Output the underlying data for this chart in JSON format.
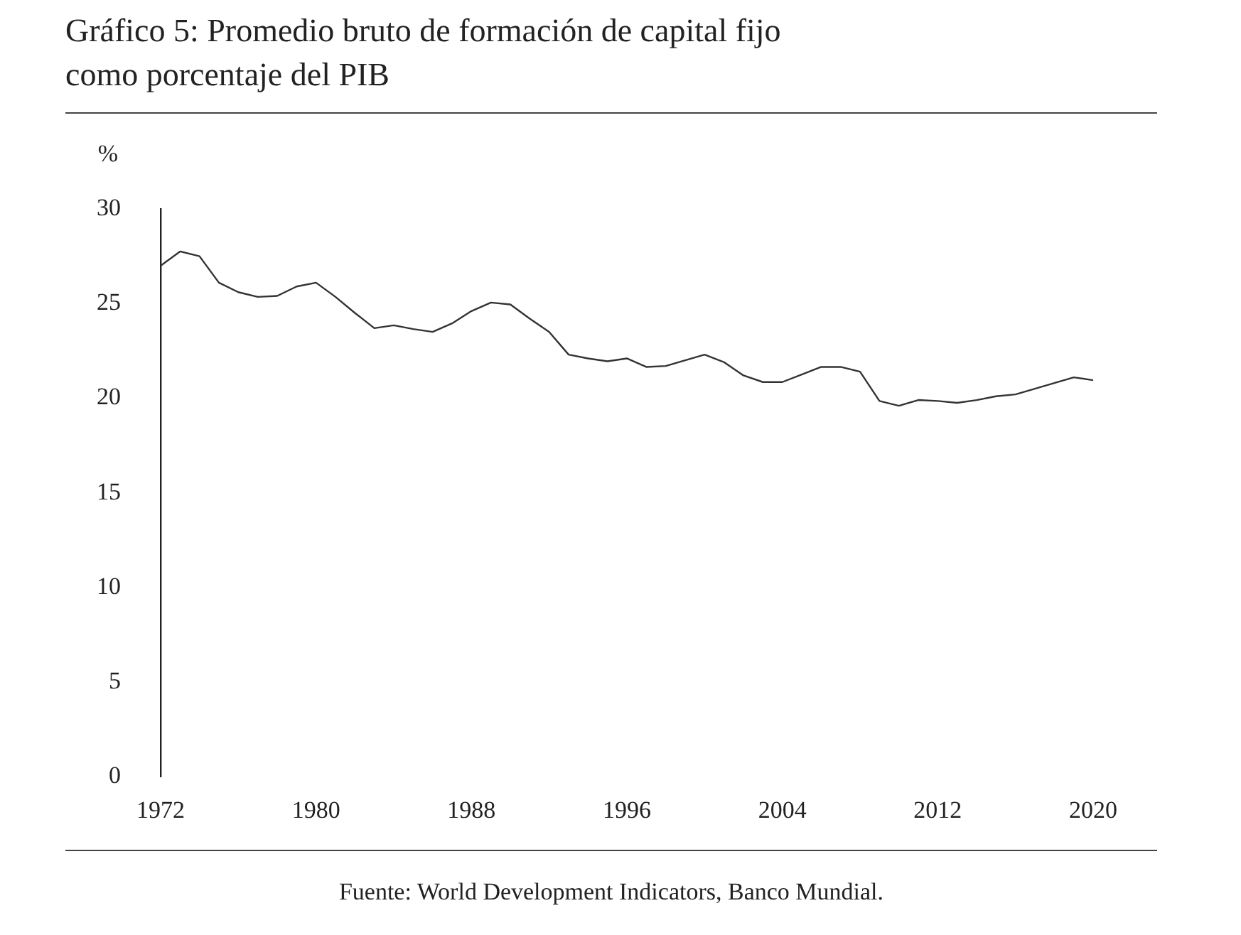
{
  "chart_data": {
    "type": "line",
    "title": "Gráfico 5: Promedio bruto de formación de capital fijo como porcentaje del PIB",
    "ylabel": "%",
    "x": [
      1972,
      1973,
      1974,
      1975,
      1976,
      1977,
      1978,
      1979,
      1980,
      1981,
      1982,
      1983,
      1984,
      1985,
      1986,
      1987,
      1988,
      1989,
      1990,
      1991,
      1992,
      1993,
      1994,
      1995,
      1996,
      1997,
      1998,
      1999,
      2000,
      2001,
      2002,
      2003,
      2004,
      2005,
      2006,
      2007,
      2008,
      2009,
      2010,
      2011,
      2012,
      2013,
      2014,
      2015,
      2016,
      2017,
      2018,
      2019,
      2020
    ],
    "series": [
      {
        "color": "#333333",
        "values": [
          27.0,
          27.75,
          27.5,
          26.1,
          25.6,
          25.35,
          25.4,
          25.9,
          26.1,
          25.35,
          24.5,
          23.7,
          23.85,
          23.65,
          23.5,
          23.95,
          24.6,
          25.05,
          24.95,
          24.2,
          23.5,
          22.3,
          22.1,
          21.95,
          22.1,
          21.65,
          21.7,
          22.0,
          22.3,
          21.9,
          21.2,
          20.85,
          20.85,
          21.25,
          21.65,
          21.65,
          21.4,
          19.85,
          19.6,
          19.9,
          19.85,
          19.75,
          19.9,
          20.1,
          20.2,
          20.5,
          20.8,
          21.1,
          20.95
        ]
      }
    ],
    "xlim": [
      1972,
      2020
    ],
    "xticks": [
      1972,
      1980,
      1988,
      1996,
      2004,
      2012,
      2020
    ],
    "ylim": [
      0,
      30
    ],
    "yticks": [
      0,
      5,
      10,
      15,
      20,
      25,
      30
    ],
    "grid": false,
    "legend": false,
    "marker": "none",
    "line_style": "solid",
    "annotations": [
      "Fuente: World Development Indicators, Banco Mundial."
    ]
  }
}
